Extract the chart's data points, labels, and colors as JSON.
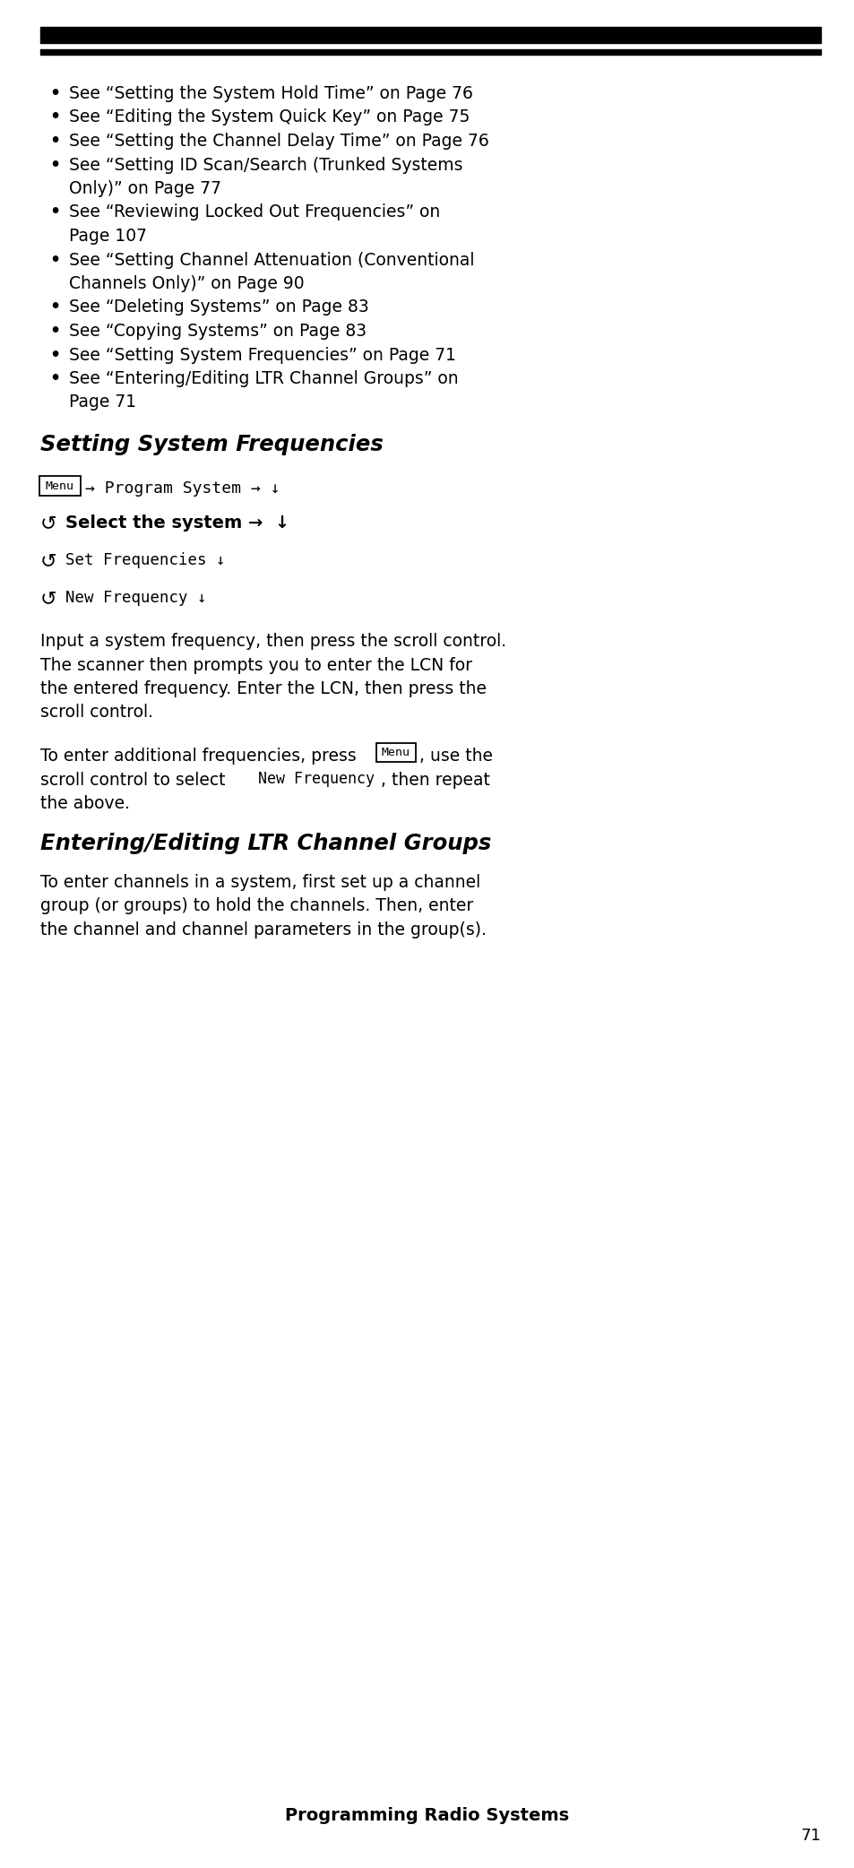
{
  "bg_color": "#ffffff",
  "text_color": "#000000",
  "page_width": 9.54,
  "page_height": 20.84,
  "bullet_items": [
    [
      "See “Setting the System Hold Time” on Page 76"
    ],
    [
      "See “Editing the System Quick Key” on Page 75"
    ],
    [
      "See “Setting the Channel Delay Time” on Page 76"
    ],
    [
      "See “Setting ID Scan/Search (Trunked Systems",
      "Only)” on Page 77"
    ],
    [
      "See “Reviewing Locked Out Frequencies” on",
      "Page 107"
    ],
    [
      "See “Setting Channel Attenuation (Conventional",
      "Channels Only)” on Page 90"
    ],
    [
      "See “Deleting Systems” on Page 83"
    ],
    [
      "See “Copying Systems” on Page 83"
    ],
    [
      "See “Setting System Frequencies” on Page 71"
    ],
    [
      "See “Entering/Editing LTR Channel Groups” on",
      "Page 71"
    ]
  ],
  "section1_title": "Setting System Frequencies",
  "section2_title": "Entering/Editing LTR Channel Groups",
  "para1_lines": [
    "Input a system frequency, then press the scroll control.",
    "The scanner then prompts you to enter the LCN for",
    "the entered frequency. Enter the LCN, then press the",
    "scroll control."
  ],
  "para3_lines": [
    "To enter channels in a system, first set up a channel",
    "group (or groups) to hold the channels. Then, enter",
    "the channel and channel parameters in the group(s)."
  ],
  "footer_title": "Programming Radio Systems",
  "page_number": "71"
}
